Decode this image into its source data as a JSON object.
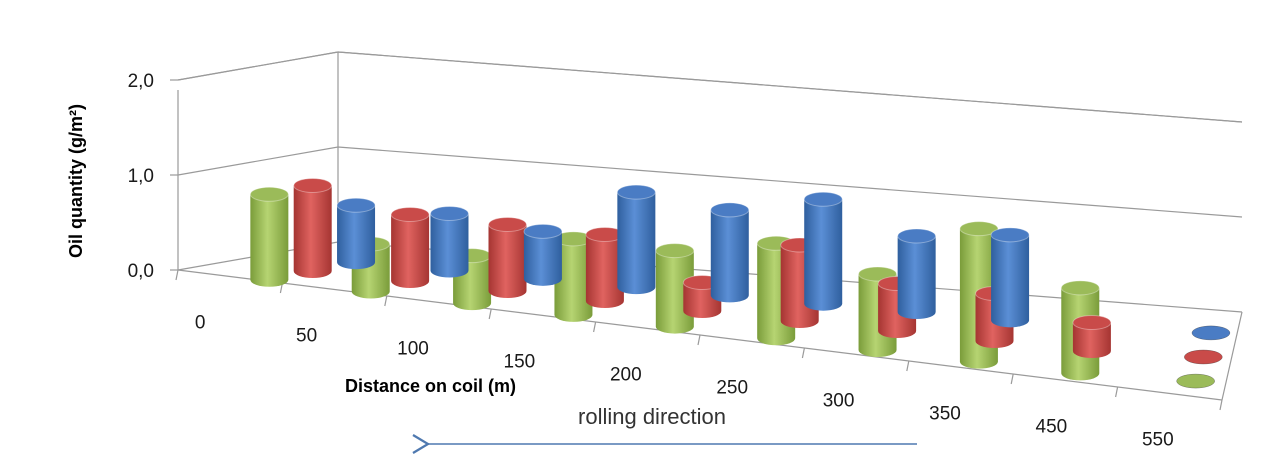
{
  "chart_data": {
    "type": "bar",
    "style": "3d-cylinder",
    "categories": [
      "0",
      "50",
      "100",
      "150",
      "200",
      "250",
      "300",
      "350",
      "450",
      "550"
    ],
    "series": [
      {
        "color": "#4a7cc4",
        "values": [
          0.6,
          0.6,
          0.5,
          1.0,
          0.9,
          1.1,
          0.8,
          0.9,
          null,
          null
        ]
      },
      {
        "color": "#c94b49",
        "values": [
          0.9,
          0.7,
          0.7,
          0.7,
          0.3,
          0.8,
          0.5,
          0.5,
          0.3,
          null
        ]
      },
      {
        "color": "#9bbb59",
        "values": [
          0.9,
          0.5,
          0.5,
          0.8,
          0.8,
          1.0,
          0.8,
          1.4,
          0.9,
          null
        ]
      }
    ],
    "ylim": [
      0,
      2
    ],
    "yticks": [
      "0,0",
      "1,0",
      "2,0"
    ],
    "xlabel": "Distance on coil (m)",
    "ylabel": "Oil quantity (g/m²)",
    "grid": true
  },
  "annotation": {
    "text": "rolling direction",
    "arrow": "left"
  }
}
